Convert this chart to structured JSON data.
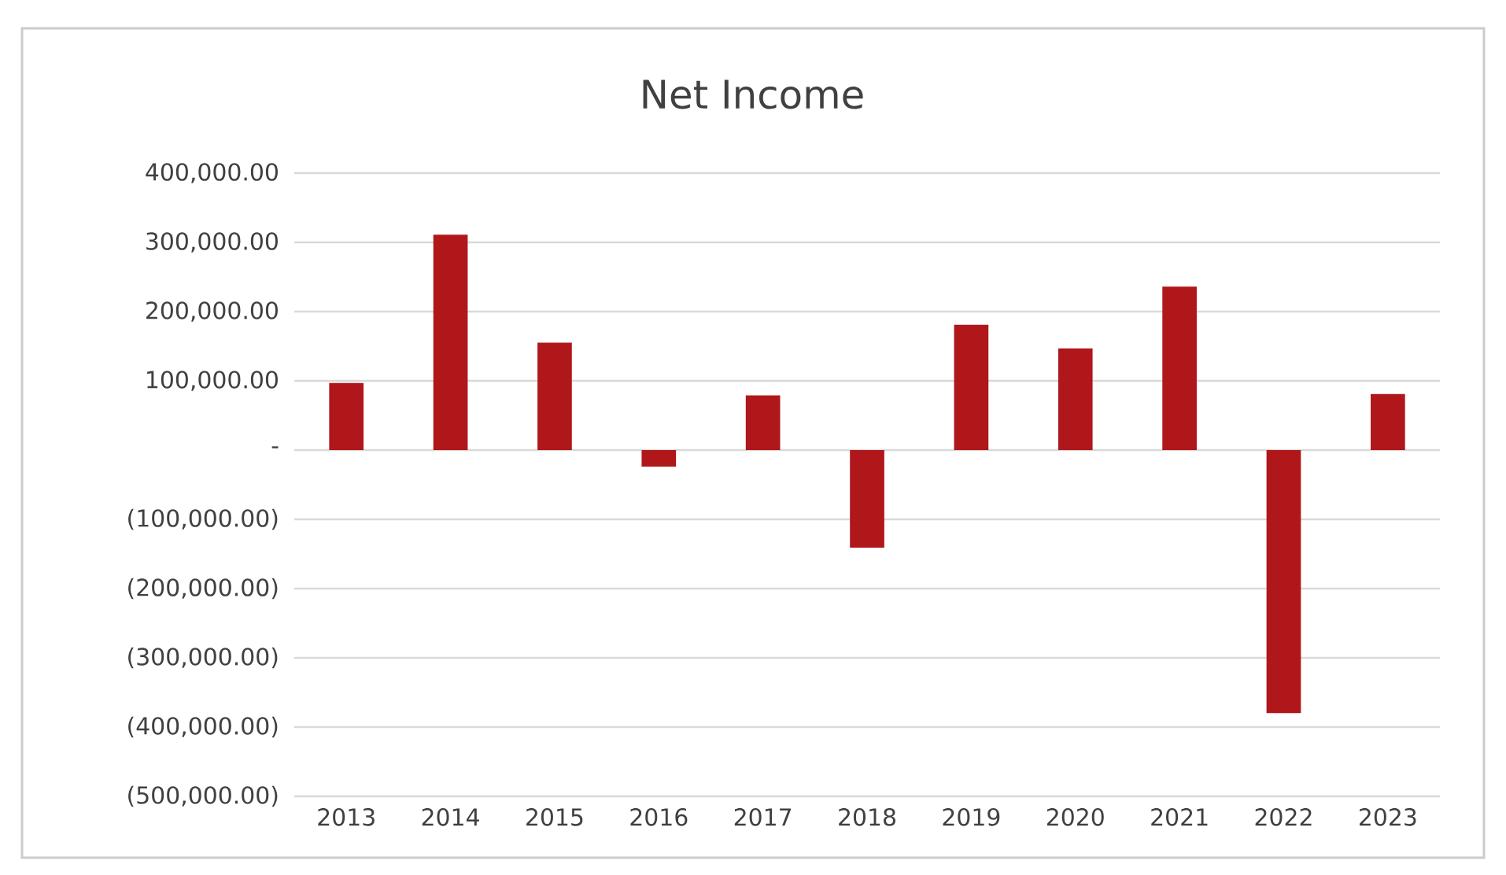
{
  "chart_data": {
    "type": "bar",
    "title": "Net Income",
    "categories": [
      "2013",
      "2014",
      "2015",
      "2016",
      "2017",
      "2018",
      "2019",
      "2020",
      "2021",
      "2022",
      "2023"
    ],
    "values": [
      97000,
      311000,
      155000,
      -24000,
      79000,
      -141000,
      181000,
      147000,
      236000,
      -380000,
      81000
    ],
    "color": "#b0171a",
    "ylim": [
      -500000,
      400000
    ],
    "yticks": [
      {
        "value": 400000,
        "label": "400,000.00"
      },
      {
        "value": 300000,
        "label": "300,000.00"
      },
      {
        "value": 200000,
        "label": "200,000.00"
      },
      {
        "value": 100000,
        "label": "100,000.00"
      },
      {
        "value": 0,
        "label": "-"
      },
      {
        "value": -100000,
        "label": "(100,000.00)"
      },
      {
        "value": -200000,
        "label": "(200,000.00)"
      },
      {
        "value": -300000,
        "label": "(300,000.00)"
      },
      {
        "value": -400000,
        "label": "(400,000.00)"
      },
      {
        "value": -500000,
        "label": "(500,000.00)"
      }
    ],
    "grid": "y"
  }
}
